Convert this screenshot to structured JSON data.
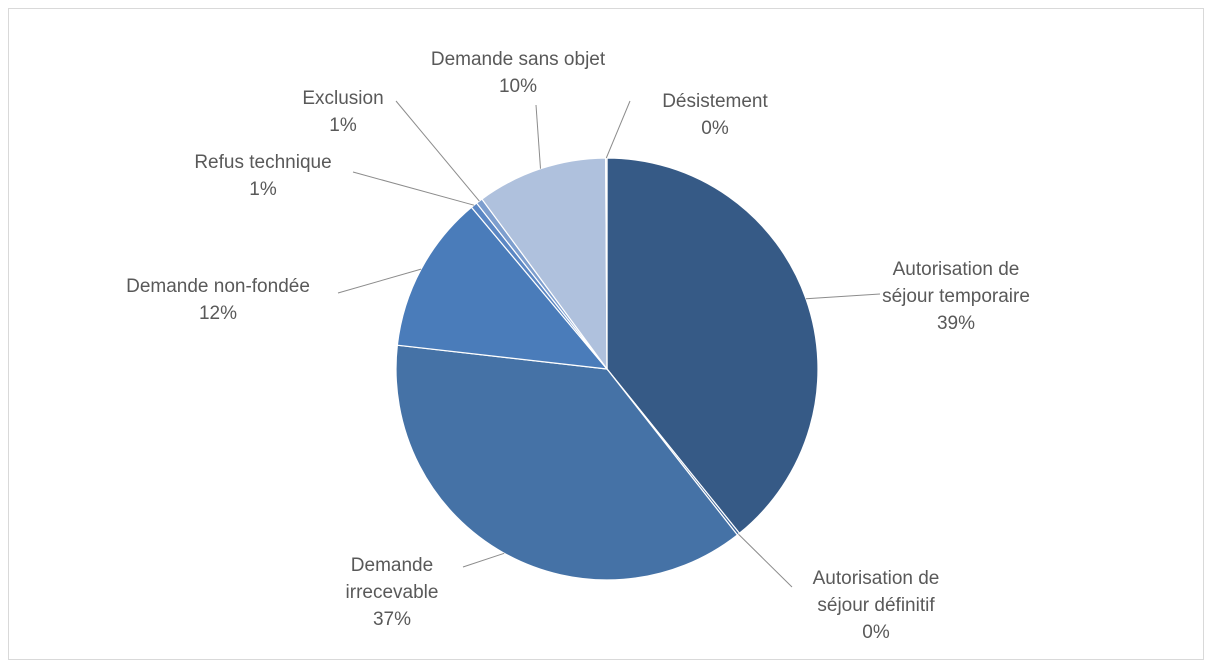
{
  "chart_data": {
    "type": "pie",
    "title": "",
    "slices": [
      {
        "name": "Autorisation de séjour temporaire",
        "label_lines": [
          "Autorisation de",
          "séjour temporaire"
        ],
        "pct_label": "39%",
        "value": 39.2,
        "color": "#365a86"
      },
      {
        "name": "Autorisation de séjour définitif",
        "label_lines": [
          "Autorisation de",
          "séjour définitif"
        ],
        "pct_label": "0%",
        "value": 0.2,
        "color": "#3d6599"
      },
      {
        "name": "Demande irrecevable",
        "label_lines": [
          "Demande",
          "irrecevable"
        ],
        "pct_label": "37%",
        "value": 37.4,
        "color": "#4572a6"
      },
      {
        "name": "Demande non-fondée",
        "label_lines": [
          "Demande non-fondée"
        ],
        "pct_label": "12%",
        "value": 12.1,
        "color": "#4a7cba"
      },
      {
        "name": "Refus technique",
        "label_lines": [
          "Refus technique"
        ],
        "pct_label": "1%",
        "value": 0.5,
        "color": "#5b87c4"
      },
      {
        "name": "Exclusion",
        "label_lines": [
          "Exclusion"
        ],
        "pct_label": "1%",
        "value": 0.5,
        "color": "#7d9ece"
      },
      {
        "name": "Demande sans objet",
        "label_lines": [
          "Demande sans objet"
        ],
        "pct_label": "10%",
        "value": 10.0,
        "color": "#afc1dd"
      },
      {
        "name": "Désistement",
        "label_lines": [
          "Désistement"
        ],
        "pct_label": "0%",
        "value": 0.1,
        "color": "#c9d5e8"
      }
    ],
    "legend": "none"
  }
}
